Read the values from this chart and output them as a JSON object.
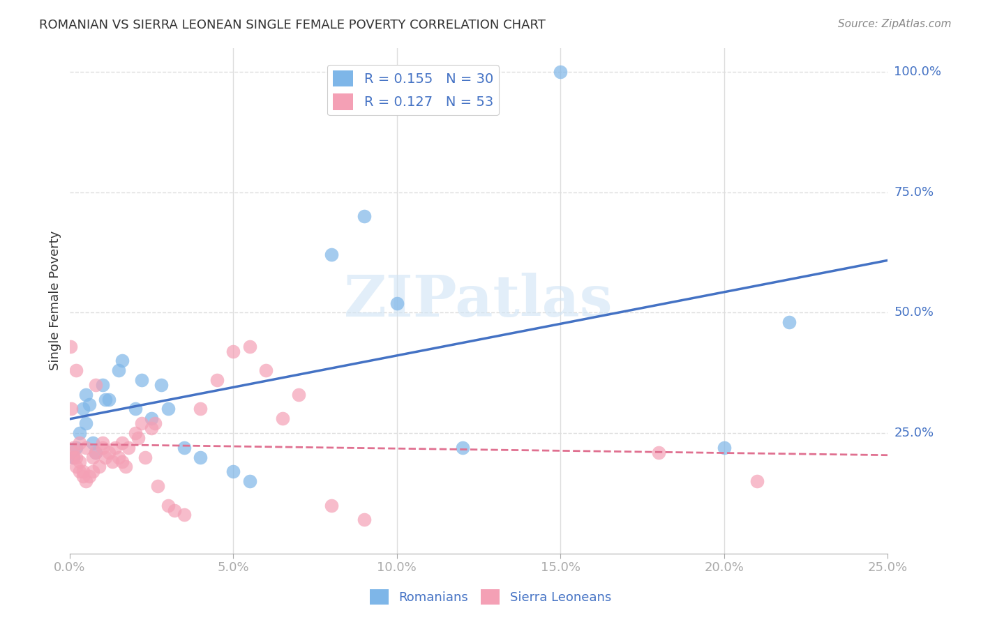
{
  "title": "ROMANIAN VS SIERRA LEONEAN SINGLE FEMALE POVERTY CORRELATION CHART",
  "source": "Source: ZipAtlas.com",
  "ylabel": "Single Female Poverty",
  "ylabel_right_ticks": [
    "100.0%",
    "75.0%",
    "50.0%",
    "25.0%"
  ],
  "ylabel_right_positions": [
    1.0,
    0.75,
    0.5,
    0.25
  ],
  "r_romanian": 0.155,
  "n_romanian": 30,
  "r_sierra": 0.127,
  "n_sierra": 53,
  "color_romanian": "#7eb6e8",
  "color_sierra": "#f4a0b5",
  "color_trendline_romanian": "#4472c4",
  "color_trendline_sierra": "#e07090",
  "romanian_x": [
    0.001,
    0.002,
    0.003,
    0.004,
    0.005,
    0.005,
    0.006,
    0.007,
    0.008,
    0.01,
    0.011,
    0.012,
    0.015,
    0.016,
    0.02,
    0.022,
    0.025,
    0.028,
    0.03,
    0.035,
    0.04,
    0.05,
    0.055,
    0.08,
    0.09,
    0.1,
    0.12,
    0.15,
    0.2,
    0.22
  ],
  "romanian_y": [
    0.2,
    0.22,
    0.25,
    0.3,
    0.27,
    0.33,
    0.31,
    0.23,
    0.21,
    0.35,
    0.32,
    0.32,
    0.38,
    0.4,
    0.3,
    0.36,
    0.28,
    0.35,
    0.3,
    0.22,
    0.2,
    0.17,
    0.15,
    0.62,
    0.7,
    0.52,
    0.22,
    1.0,
    0.22,
    0.48
  ],
  "sierra_x": [
    0.0003,
    0.0005,
    0.001,
    0.001,
    0.001,
    0.002,
    0.002,
    0.002,
    0.003,
    0.003,
    0.003,
    0.004,
    0.004,
    0.005,
    0.005,
    0.006,
    0.007,
    0.007,
    0.008,
    0.008,
    0.009,
    0.01,
    0.01,
    0.011,
    0.012,
    0.013,
    0.014,
    0.015,
    0.016,
    0.016,
    0.017,
    0.018,
    0.02,
    0.021,
    0.022,
    0.023,
    0.025,
    0.026,
    0.027,
    0.03,
    0.032,
    0.035,
    0.04,
    0.045,
    0.05,
    0.055,
    0.06,
    0.065,
    0.07,
    0.08,
    0.09,
    0.18,
    0.21
  ],
  "sierra_y": [
    0.43,
    0.3,
    0.2,
    0.21,
    0.22,
    0.18,
    0.2,
    0.38,
    0.17,
    0.19,
    0.23,
    0.16,
    0.17,
    0.22,
    0.15,
    0.16,
    0.17,
    0.2,
    0.21,
    0.35,
    0.18,
    0.22,
    0.23,
    0.2,
    0.21,
    0.19,
    0.22,
    0.2,
    0.19,
    0.23,
    0.18,
    0.22,
    0.25,
    0.24,
    0.27,
    0.2,
    0.26,
    0.27,
    0.14,
    0.1,
    0.09,
    0.08,
    0.3,
    0.36,
    0.42,
    0.43,
    0.38,
    0.28,
    0.33,
    0.1,
    0.07,
    0.21,
    0.15
  ],
  "xlim": [
    0.0,
    0.25
  ],
  "ylim": [
    0.0,
    1.05
  ],
  "background_color": "#ffffff",
  "grid_color": "#dddddd",
  "title_color": "#333333",
  "axis_label_color": "#4472c4",
  "source_color": "#888888"
}
